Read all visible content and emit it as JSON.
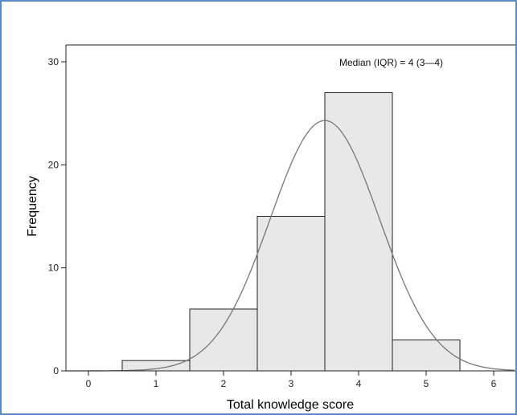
{
  "chart_data": {
    "type": "bar",
    "subtype": "histogram",
    "annotation": "Median (IQR) = 4 (3—4)",
    "xlabel": "Total knowledge score",
    "ylabel": "Frequency",
    "xlim": [
      -0.5,
      6.3
    ],
    "ylim": [
      0,
      30
    ],
    "x_ticks": [
      0,
      1,
      2,
      3,
      4,
      5,
      6
    ],
    "y_ticks": [
      0,
      10,
      20,
      30
    ],
    "bins": [
      {
        "center": 1,
        "start": 0.5,
        "end": 1.5,
        "count": 1
      },
      {
        "center": 2,
        "start": 1.5,
        "end": 2.5,
        "count": 6
      },
      {
        "center": 3,
        "start": 2.5,
        "end": 3.5,
        "count": 15
      },
      {
        "center": 4,
        "start": 3.5,
        "end": 4.5,
        "count": 27
      },
      {
        "center": 5,
        "start": 4.5,
        "end": 5.5,
        "count": 3
      }
    ],
    "normal_curve": {
      "mean": 3.5,
      "sd": 0.81,
      "peak": 24.3
    },
    "bar_fill": "#e8e8e8",
    "bar_stroke": "#222222",
    "curve_color": "#777777",
    "grid": false
  }
}
